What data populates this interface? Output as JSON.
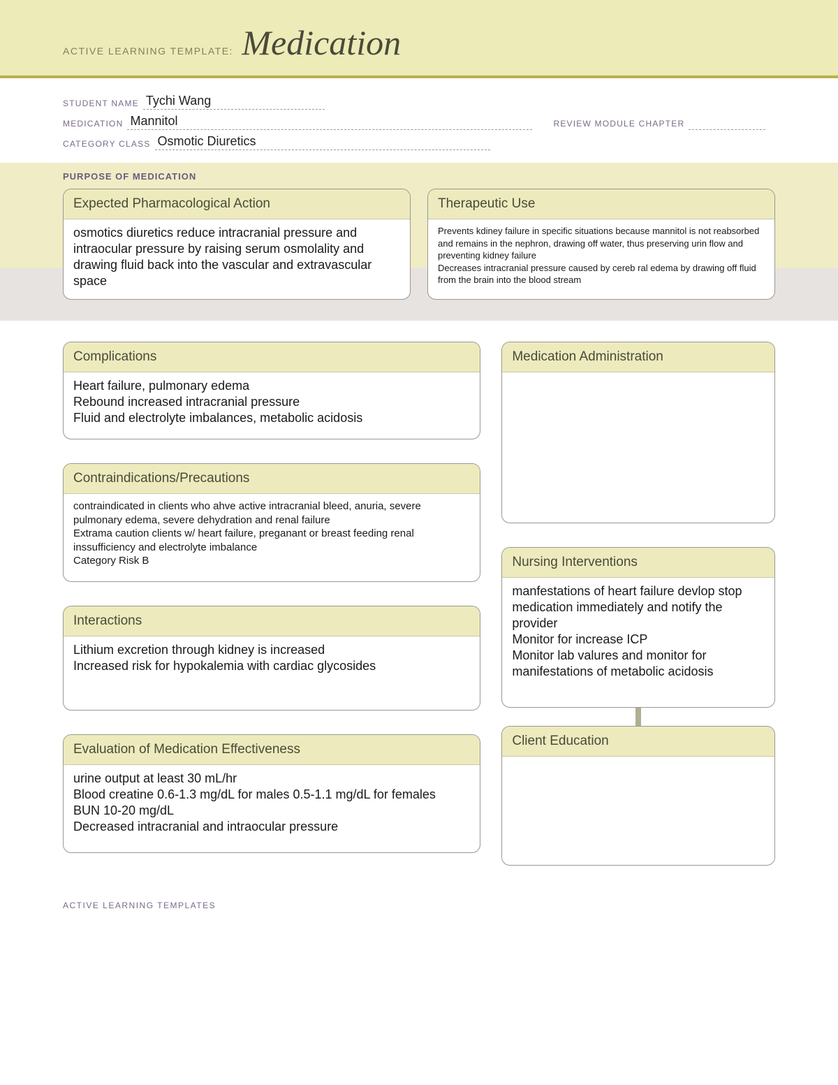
{
  "banner": {
    "label": "ACTIVE LEARNING TEMPLATE:",
    "title": "Medication"
  },
  "fields": {
    "student_label": "STUDENT NAME",
    "student_value": "Tychi Wang",
    "medication_label": "MEDICATION",
    "medication_value": "Mannitol",
    "category_label": "CATEGORY CLASS",
    "category_value": "Osmotic Diuretics",
    "chapter_label": "REVIEW MODULE CHAPTER",
    "chapter_value": ""
  },
  "purpose": {
    "section_title": "PURPOSE OF MEDICATION",
    "pharm_action": {
      "title": "Expected Pharmacological Action",
      "text": "osmotics diuretics reduce intracranial pressure and intraocular pressure by raising serum osmolality and drawing fluid back into the vascular and extravascular space"
    },
    "therapeutic_use": {
      "title": "Therapeutic Use",
      "text": "Prevents kdiney failure in specific situations because mannitol is not reabsorbed and remains in the nephron, drawing off water, thus preserving urin flow and preventing kidney failure\nDecreases intracranial pressure caused by cereb ral edema by drawing off fluid from the brain into the blood stream"
    }
  },
  "boxes": {
    "complications": {
      "title": "Complications",
      "text": "Heart failure, pulmonary edema\nRebound increased intracranial pressure\nFluid and electrolyte imbalances, metabolic acidosis"
    },
    "contra": {
      "title": "Contraindications/Precautions",
      "text": "contraindicated in clients who ahve active intracranial bleed, anuria, severe pulmonary edema, severe dehydration and renal failure\nExtrama caution clients w/ heart failure, preganant or breast feeding renal inssufficiency and electrolyte imbalance\nCategory Risk B"
    },
    "interactions": {
      "title": "Interactions",
      "text": "Lithium excretion through kidney is increased\nIncreased risk for hypokalemia with cardiac glycosides"
    },
    "evaluation": {
      "title": "Evaluation of Medication Effectiveness",
      "text": "urine output at least 30 mL/hr\nBlood creatine 0.6-1.3 mg/dL for males 0.5-1.1 mg/dL for females\nBUN 10-20 mg/dL\nDecreased intracranial and intraocular pressure"
    },
    "med_admin": {
      "title": "Medication Administration",
      "text": ""
    },
    "nursing": {
      "title": "Nursing Interventions",
      "text": "manfestations of heart failure devlop stop medication immediately and notify the provider\nMonitor for increase ICP\nMonitor lab valures and monitor for manifestations of metabolic acidosis"
    },
    "client_edu": {
      "title": "Client Education",
      "text": ""
    }
  },
  "footer": "ACTIVE LEARNING TEMPLATES",
  "colors": {
    "banner_bg": "#edebb8",
    "accent_border": "#b8b24a",
    "card_header_bg": "#edebbd",
    "card_border": "#9a988f",
    "label_text": "#7a6a8a"
  }
}
